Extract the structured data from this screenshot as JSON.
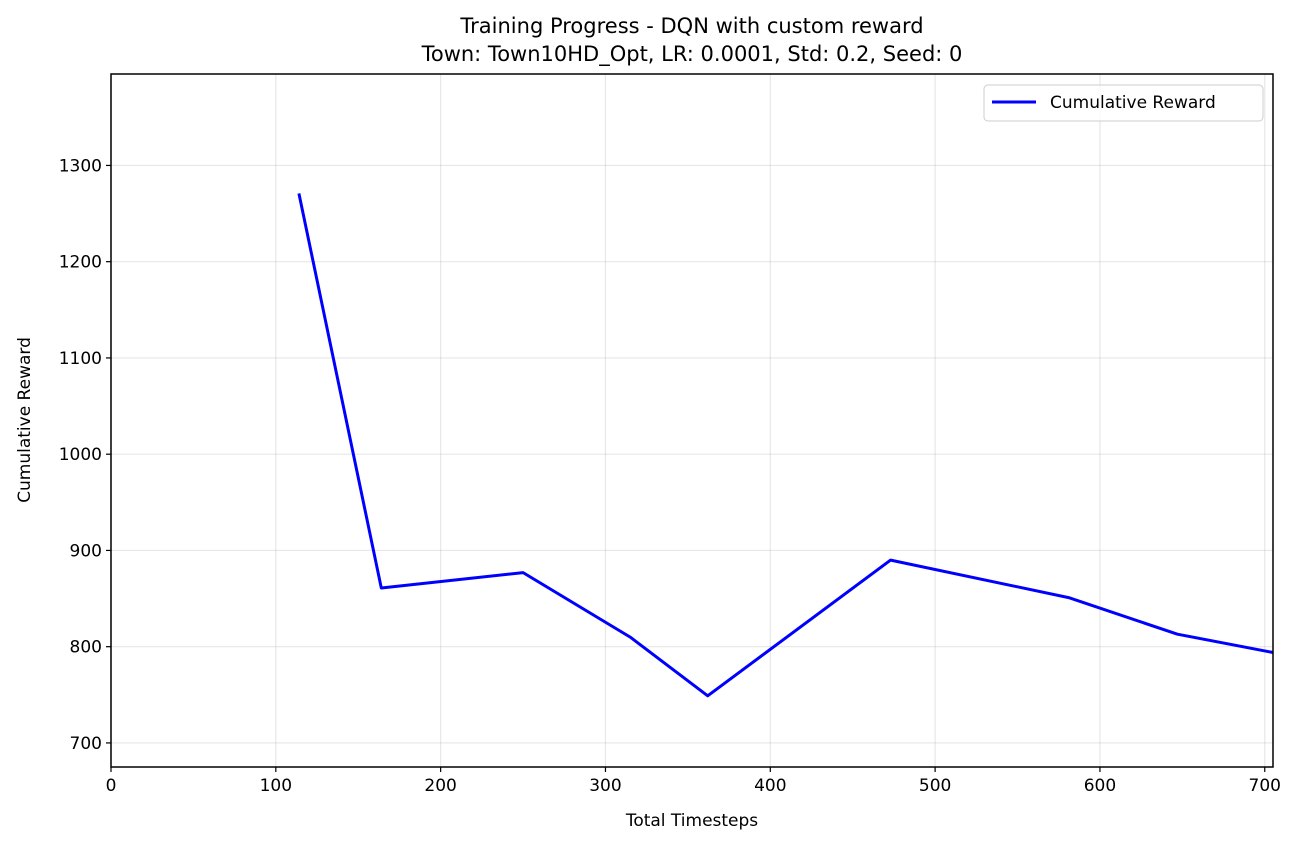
{
  "chart_data": {
    "type": "line",
    "title": "Training Progress - DQN with custom reward",
    "subtitle": "Town: Town10HD_Opt, LR: 0.0001, Std: 0.2, Seed: 0",
    "xlabel": "Total Timesteps",
    "ylabel": "Cumulative Reward",
    "xlim": [
      0,
      705
    ],
    "ylim": [
      675,
      1395
    ],
    "xticks": [
      0,
      100,
      200,
      300,
      400,
      500,
      600,
      700
    ],
    "yticks": [
      700,
      800,
      900,
      1000,
      1100,
      1200,
      1300
    ],
    "grid": true,
    "legend_position": "top-right",
    "series": [
      {
        "name": "Cumulative Reward",
        "color": "#0000ff",
        "x": [
          114,
          164,
          250,
          315,
          362,
          473,
          581,
          647,
          705
        ],
        "y": [
          1271,
          861,
          877,
          810,
          749,
          890,
          851,
          813,
          794
        ]
      }
    ]
  }
}
